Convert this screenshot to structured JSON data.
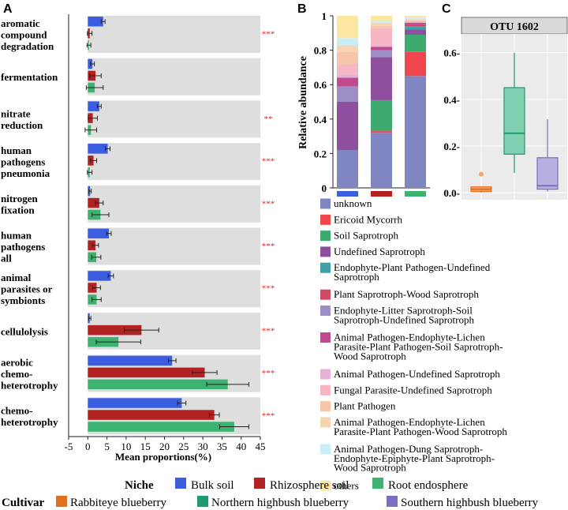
{
  "panel_labels": {
    "a": "A",
    "b": "B",
    "c": "C"
  },
  "colors": {
    "bulk": "#3b5ee0",
    "rhizo": "#b22222",
    "endo": "#3cb371",
    "rabbit": "#e07020",
    "northern": "#1f9a6f",
    "southern": "#7a6fc0",
    "row_bg": "#dedede",
    "sig": "#e02020"
  },
  "chart_data": [
    {
      "type": "bar",
      "orientation": "horizontal",
      "panel": "A",
      "xlabel": "Mean proportions(%)",
      "xlim": [
        -5,
        45
      ],
      "xticks": [
        -5,
        0,
        5,
        10,
        15,
        20,
        25,
        30,
        35,
        40,
        45
      ],
      "series_names": [
        "Bulk soil",
        "Rhizosphere soil",
        "Root endosphere"
      ],
      "categories": [
        {
          "label": [
            "aromatic",
            "compound",
            "degradation"
          ],
          "values": [
            4,
            0.5,
            0.3
          ],
          "errors": [
            0.5,
            0.6,
            0.5
          ],
          "sig": "***"
        },
        {
          "label": [
            "fermentation"
          ],
          "values": [
            1.2,
            2,
            1.8
          ],
          "errors": [
            0.5,
            1.5,
            2.2
          ],
          "sig": ""
        },
        {
          "label": [
            "nitrate",
            "reduction"
          ],
          "values": [
            3,
            1.3,
            0.8
          ],
          "errors": [
            0.5,
            1.2,
            1.5
          ],
          "sig": "**"
        },
        {
          "label": [
            "human",
            "pathogens",
            "pneumonia"
          ],
          "values": [
            5.2,
            1.5,
            0.5
          ],
          "errors": [
            0.6,
            0.8,
            0.6
          ],
          "sig": "***"
        },
        {
          "label": [
            "nitrogen",
            "fixation"
          ],
          "values": [
            0.6,
            3,
            3.3
          ],
          "errors": [
            0.3,
            1,
            2.2
          ],
          "sig": "***"
        },
        {
          "label": [
            "human",
            "pathogens",
            "all"
          ],
          "values": [
            5.5,
            2,
            2.2
          ],
          "errors": [
            0.6,
            0.8,
            1.2
          ],
          "sig": "***"
        },
        {
          "label": [
            "animal",
            "parasites or",
            "symbionts"
          ],
          "values": [
            6,
            2.3,
            2.3
          ],
          "errors": [
            0.7,
            1,
            1.2
          ],
          "sig": "***"
        },
        {
          "label": [
            "cellulolysis"
          ],
          "values": [
            0.5,
            14,
            8
          ],
          "errors": [
            0.3,
            4.5,
            5.8
          ],
          "sig": "***"
        },
        {
          "label": [
            "aerobic",
            "chemo-",
            "heterotrophy"
          ],
          "values": [
            22,
            30.5,
            36.5
          ],
          "errors": [
            1,
            3.2,
            5.5
          ],
          "sig": "***"
        },
        {
          "label": [
            "chemo-",
            "heterotrophy"
          ],
          "values": [
            24.5,
            33,
            38.2
          ],
          "errors": [
            1.1,
            1.3,
            3.8
          ],
          "sig": "***"
        }
      ]
    },
    {
      "type": "bar",
      "stacked": true,
      "panel": "B",
      "ylabel": "Relative abundance",
      "ylim": [
        0,
        1
      ],
      "yticks": [
        "0",
        "0.2",
        "0.4",
        "0.6",
        "0.8",
        "1"
      ],
      "groups": [
        "Bulk soil",
        "Rhizosphere soil",
        "Root endosphere"
      ],
      "series": [
        {
          "name": "unknown",
          "color": "#7f86c2",
          "values": [
            0.22,
            0.32,
            0.65
          ]
        },
        {
          "name": "Ericoid Mycorrh",
          "color": "#f0474f",
          "values": [
            0.0,
            0.01,
            0.14
          ]
        },
        {
          "name": "Soil Saprotroph",
          "color": "#3daa6f",
          "values": [
            0.0,
            0.18,
            0.1
          ]
        },
        {
          "name": "Undefined Saprotroph",
          "color": "#8e4f9e",
          "values": [
            0.28,
            0.25,
            0.03
          ]
        },
        {
          "name": "Endophyte-Plant Pathogen-Undefined Saprotroph",
          "color": "#3fa0a8",
          "values": [
            0.0,
            0.0,
            0.02
          ]
        },
        {
          "name": "Plant Saprotroph-Wood Saprotroph",
          "color": "#d04a66",
          "values": [
            0.0,
            0.0,
            0.01
          ]
        },
        {
          "name": "Endophyte-Litter Saprotroph-Soil Saprotroph-Undefined Saprotroph",
          "color": "#9d8fc6",
          "values": [
            0.09,
            0.04,
            0.0
          ]
        },
        {
          "name": "Animal Pathogen-Endophyte-Lichen Parasite-Plant Pathogen-Soil Saprotroph-Wood Saprotroph",
          "color": "#c04a8f",
          "values": [
            0.05,
            0.02,
            0.01
          ]
        },
        {
          "name": "Animal Pathogen-Undefined Saprotroph",
          "color": "#e5b3d8",
          "values": [
            0.02,
            0.01,
            0.0
          ]
        },
        {
          "name": "Fungal Parasite-Undefined Saprotroph",
          "color": "#f6b6c4",
          "values": [
            0.06,
            0.1,
            0.01
          ]
        },
        {
          "name": "Plant Pathogen",
          "color": "#f5c6a9",
          "values": [
            0.07,
            0.01,
            0.0
          ]
        },
        {
          "name": "Animal Pathogen-Endophyte-Lichen Parasite-Plant Pathogen-Wood Saprotroph",
          "color": "#f6d6b2",
          "values": [
            0.04,
            0.02,
            0.01
          ]
        },
        {
          "name": "Animal Pathogen-Dung Saprotroph-Endophyte-Epiphyte-Plant Saprotroph-Wood Saprotroph",
          "color": "#c9eef6",
          "values": [
            0.04,
            0.01,
            0.01
          ]
        },
        {
          "name": "others",
          "color": "#fbe7a1",
          "values": [
            0.13,
            0.03,
            0.01
          ]
        }
      ],
      "legend_lines": [
        [
          "unknown"
        ],
        [
          "Ericoid Mycorrh"
        ],
        [
          "Soil Saprotroph"
        ],
        [
          "Undefined Saprotroph"
        ],
        [
          "Endophyte-Plant Pathogen-Undefined",
          "Saprotroph"
        ],
        [
          "Plant Saprotroph-Wood Saprotroph"
        ],
        [
          "Endophyte-Litter Saprotroph-Soil",
          "Saprotroph-Undefined Saprotroph"
        ],
        [
          "Animal Pathogen-Endophyte-Lichen",
          "Parasite-Plant Pathogen-Soil Saprotroph-",
          "Wood Saprotroph"
        ],
        [
          "Animal Pathogen-Undefined Saprotroph"
        ],
        [
          "Fungal Parasite-Undefined Saprotroph"
        ],
        [
          "Plant Pathogen"
        ],
        [
          "Animal Pathogen-Endophyte-Lichen",
          "Parasite-Plant Pathogen-Wood Saprotroph"
        ],
        [
          "Animal Pathogen-Dung Saprotroph-",
          "Endophyte-Epiphyte-Plant Saprotroph-",
          "Wood Saprotroph"
        ],
        [
          "others"
        ]
      ]
    },
    {
      "type": "box",
      "panel": "C",
      "title": "OTU 1602",
      "ylim": [
        -0.03,
        0.68
      ],
      "yticks": [
        0,
        0.2,
        0.4,
        0.6
      ],
      "ytick_labels": [
        "0.0-",
        "0.2-",
        "0.4-",
        "0.6-"
      ],
      "groups": [
        {
          "name": "Rabbiteye blueberry",
          "min": 0.0,
          "q1": 0.005,
          "median": 0.015,
          "q3": 0.025,
          "max": 0.025,
          "outliers": [
            0.08
          ]
        },
        {
          "name": "Northern highbush blueberry",
          "min": 0.085,
          "q1": 0.165,
          "median": 0.255,
          "q3": 0.45,
          "max": 0.6,
          "outliers": []
        },
        {
          "name": "Southern highbush blueberry",
          "min": 0.005,
          "q1": 0.015,
          "median": 0.03,
          "q3": 0.15,
          "max": 0.315,
          "outliers": []
        }
      ]
    }
  ],
  "legends": {
    "niche": {
      "title": "Niche",
      "items": [
        "Bulk soil",
        "Rhizosphere soil",
        "Root endosphere"
      ]
    },
    "cultivar": {
      "title": "Cultivar",
      "items": [
        "Rabbiteye blueberry",
        "Northern highbush blueberry",
        "Southern highbush blueberry"
      ]
    }
  }
}
